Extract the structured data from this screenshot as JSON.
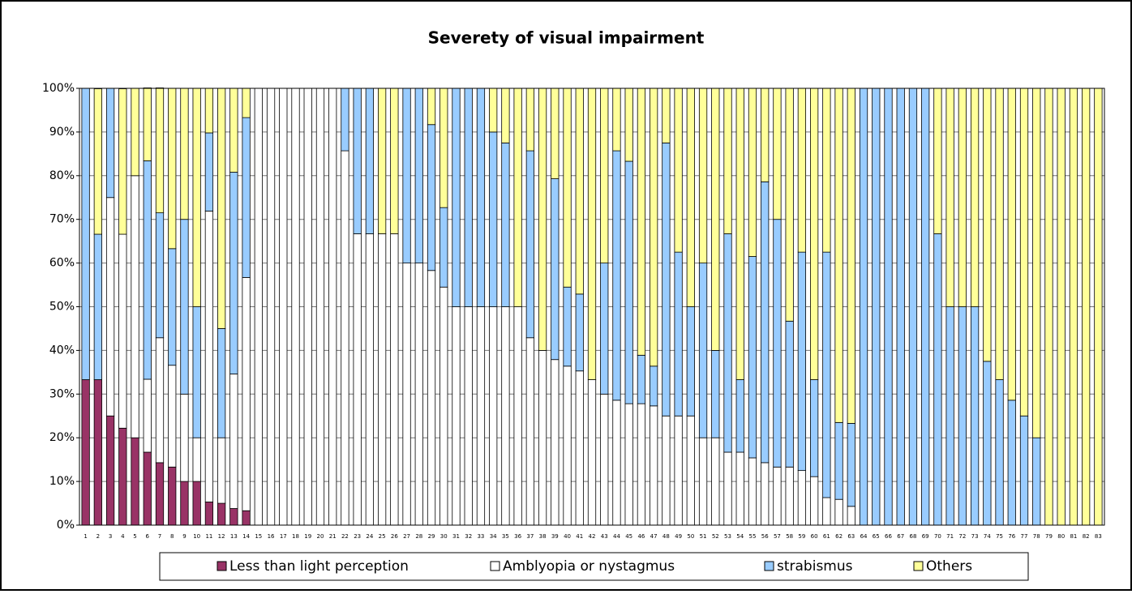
{
  "chart_data": {
    "type": "stacked_bar_percent",
    "title": "Severety of visual impairment",
    "categories": [
      "1",
      "2",
      "3",
      "4",
      "5",
      "6",
      "7",
      "8",
      "9",
      "10",
      "11",
      "12",
      "13",
      "14",
      "15",
      "16",
      "17",
      "18",
      "19",
      "20",
      "21",
      "22",
      "23",
      "24",
      "25",
      "26",
      "27",
      "28",
      "29",
      "30",
      "31",
      "32",
      "33",
      "34",
      "35",
      "36",
      "37",
      "38",
      "39",
      "40",
      "41",
      "42",
      "43",
      "44",
      "45",
      "46",
      "47",
      "48",
      "49",
      "50",
      "51",
      "52",
      "53",
      "54",
      "55",
      "56",
      "57",
      "58",
      "59",
      "60",
      "61",
      "62",
      "63",
      "64",
      "65",
      "66",
      "67",
      "68",
      "69",
      "70",
      "71",
      "72",
      "73",
      "74",
      "75",
      "76",
      "77",
      "78",
      "79",
      "80",
      "81",
      "82",
      "83"
    ],
    "series": [
      {
        "name": "Less than light perception",
        "color": "#993366",
        "values": [
          33.3,
          33.3,
          25,
          22.2,
          20,
          16.7,
          14.3,
          13.3,
          10,
          10,
          5.3,
          5,
          3.8,
          3.3,
          0,
          0,
          0,
          0,
          0,
          0,
          0,
          0,
          0,
          0,
          0,
          0,
          0,
          0,
          0,
          0,
          0,
          0,
          0,
          0,
          0,
          0,
          0,
          0,
          0,
          0,
          0,
          0,
          0,
          0,
          0,
          0,
          0,
          0,
          0,
          0,
          0,
          0,
          0,
          0,
          0,
          0,
          0,
          0,
          0,
          0,
          0,
          0,
          0,
          0,
          0,
          0,
          0,
          0,
          0,
          0,
          0,
          0,
          0,
          0,
          0,
          0,
          0,
          0,
          0,
          0,
          0,
          0,
          0
        ]
      },
      {
        "name": "Amblyopia or nystagmus",
        "color": "#ffffff",
        "values": [
          0,
          0,
          50,
          44.4,
          60,
          16.7,
          28.6,
          23.3,
          20,
          10,
          66.6,
          15,
          30.8,
          53.4,
          100,
          100,
          100,
          100,
          100,
          100,
          100,
          85.7,
          66.7,
          66.7,
          66.7,
          66.7,
          60,
          60,
          58.3,
          54.5,
          50,
          50,
          50,
          50,
          50,
          50,
          42.9,
          40,
          37.9,
          36.4,
          35.3,
          33.3,
          30,
          28.6,
          27.8,
          27.8,
          27.3,
          25,
          25,
          25,
          20,
          20,
          16.7,
          16.7,
          15.4,
          14.3,
          13.3,
          13.3,
          12.5,
          11.1,
          6.3,
          5.9,
          4.3,
          0,
          0,
          0,
          0,
          0,
          0,
          0,
          0,
          0,
          0,
          0,
          0,
          0,
          0,
          0,
          0,
          0,
          0,
          0,
          0
        ]
      },
      {
        "name": "strabismus",
        "color": "#99ccff",
        "values": [
          66.7,
          33.3,
          25,
          0,
          0,
          50,
          28.6,
          26.7,
          40,
          30,
          17.9,
          25,
          46.2,
          36.6,
          0,
          0,
          0,
          0,
          0,
          0,
          0,
          14.3,
          33.3,
          33.3,
          0,
          0,
          40,
          40,
          33.4,
          18.2,
          50,
          50,
          50,
          40,
          37.5,
          0,
          42.8,
          0,
          41.4,
          18.1,
          17.6,
          0,
          30,
          57.1,
          55.5,
          11.1,
          9.1,
          62.5,
          37.5,
          25,
          40,
          20,
          50,
          16.6,
          46.1,
          64.3,
          56.7,
          33.4,
          50,
          22.2,
          56.2,
          17.6,
          19,
          100,
          100,
          100,
          100,
          100,
          100,
          66.7,
          50,
          50,
          50,
          37.5,
          33.3,
          28.6,
          25,
          20,
          0,
          0,
          0,
          0,
          0
        ]
      },
      {
        "name": "Others",
        "color": "#ffff99",
        "values": [
          0,
          33.3,
          0,
          33.3,
          20,
          16.7,
          28.6,
          36.7,
          30,
          50,
          10.2,
          55,
          19.2,
          6.7,
          0,
          0,
          0,
          0,
          0,
          0,
          0,
          0,
          0,
          0,
          33.3,
          33.3,
          0,
          0,
          8.3,
          27.3,
          0,
          0,
          0,
          10,
          12.5,
          50,
          14.3,
          60,
          20.7,
          45.5,
          47.1,
          66.7,
          40,
          14.3,
          16.7,
          61.1,
          63.6,
          12.5,
          37.5,
          50,
          40,
          60,
          33.3,
          66.7,
          38.5,
          21.4,
          30,
          53.3,
          37.5,
          66.7,
          37.5,
          76.5,
          76.7,
          0,
          0,
          0,
          0,
          0,
          0,
          33.3,
          50,
          50,
          50,
          62.5,
          66.7,
          71.4,
          75,
          80,
          100,
          100,
          100,
          100,
          100
        ]
      }
    ],
    "ylim": [
      0,
      100
    ],
    "yticks": [
      {
        "value": 0,
        "label": "0%"
      },
      {
        "value": 10,
        "label": "10%"
      },
      {
        "value": 20,
        "label": "20%"
      },
      {
        "value": 30,
        "label": "30%"
      },
      {
        "value": 40,
        "label": "40%"
      },
      {
        "value": 50,
        "label": "50%"
      },
      {
        "value": 60,
        "label": "60%"
      },
      {
        "value": 70,
        "label": "70%"
      },
      {
        "value": 80,
        "label": "80%"
      },
      {
        "value": 90,
        "label": "90%"
      },
      {
        "value": 100,
        "label": "100%"
      }
    ],
    "grid": true,
    "legend": "bottom"
  }
}
